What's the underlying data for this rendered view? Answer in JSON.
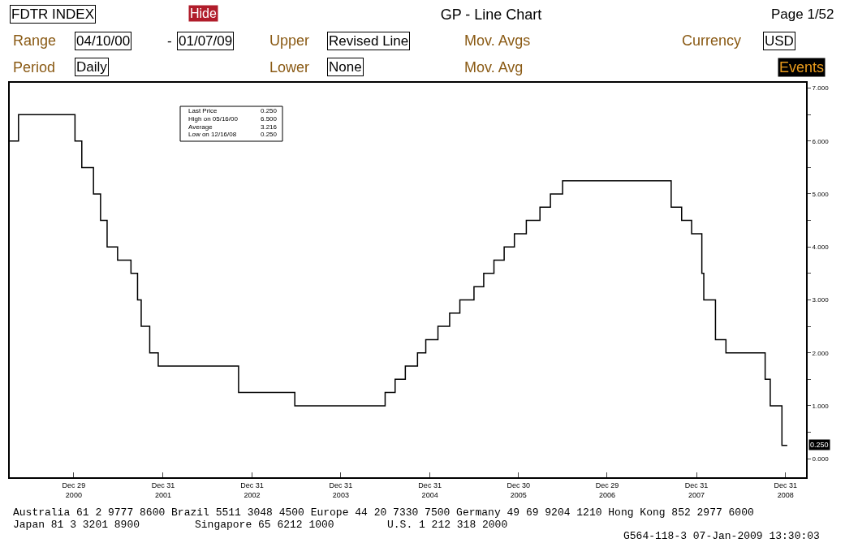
{
  "chart_data": {
    "type": "step",
    "title": "GP - Line Chart",
    "x": [
      "2000-04-10",
      "2000-05-16",
      "2001-01-03",
      "2001-01-31",
      "2001-03-20",
      "2001-04-18",
      "2001-05-15",
      "2001-06-27",
      "2001-08-21",
      "2001-09-17",
      "2001-10-02",
      "2001-11-06",
      "2001-12-11",
      "2002-11-06",
      "2003-06-25",
      "2004-06-30",
      "2004-08-10",
      "2004-09-21",
      "2004-11-10",
      "2004-12-14",
      "2005-02-02",
      "2005-03-22",
      "2005-05-03",
      "2005-06-30",
      "2005-08-09",
      "2005-09-20",
      "2005-11-01",
      "2005-12-13",
      "2006-01-31",
      "2006-03-28",
      "2006-05-10",
      "2006-06-29",
      "2007-09-18",
      "2007-10-31",
      "2007-12-11",
      "2008-01-22",
      "2008-01-30",
      "2008-03-18",
      "2008-04-30",
      "2008-10-08",
      "2008-10-29",
      "2008-12-16",
      "2009-01-07"
    ],
    "series": [
      {
        "color": "#000000",
        "values": [
          6.0,
          6.5,
          6.0,
          5.5,
          5.0,
          4.5,
          4.0,
          3.75,
          3.5,
          3.0,
          2.5,
          2.0,
          1.75,
          1.25,
          1.0,
          1.25,
          1.5,
          1.75,
          2.0,
          2.25,
          2.5,
          2.75,
          3.0,
          3.25,
          3.5,
          3.75,
          4.0,
          4.25,
          4.5,
          4.75,
          5.0,
          5.25,
          4.75,
          4.5,
          4.25,
          3.5,
          3.0,
          2.25,
          2.0,
          1.5,
          1.0,
          0.25,
          0.25
        ]
      }
    ],
    "xlim": [
      "2000-04-10",
      "2009-03-25"
    ],
    "xticks": [
      {
        "value": "2000-12-29",
        "label": "Dec 29\n2000"
      },
      {
        "value": "2001-12-31",
        "label": "Dec 31\n2001"
      },
      {
        "value": "2002-12-31",
        "label": "Dec 31\n2002"
      },
      {
        "value": "2003-12-31",
        "label": "Dec 31\n2003"
      },
      {
        "value": "2004-12-31",
        "label": "Dec 31\n2004"
      },
      {
        "value": "2005-12-30",
        "label": "Dec 30\n2005"
      },
      {
        "value": "2006-12-29",
        "label": "Dec 29\n2006"
      },
      {
        "value": "2007-12-31",
        "label": "Dec 31\n2007"
      },
      {
        "value": "2008-12-31",
        "label": "Dec 31\n2008"
      }
    ],
    "ylim": [
      -0.35,
      7.1
    ],
    "yticks": [
      {
        "value": 0,
        "label": "0.000"
      },
      {
        "value": 0.5,
        "label": null
      },
      {
        "value": 1,
        "label": "1.000"
      },
      {
        "value": 1.5,
        "label": null
      },
      {
        "value": 2,
        "label": "2.000"
      },
      {
        "value": 2.5,
        "label": null
      },
      {
        "value": 3,
        "label": "3.000"
      },
      {
        "value": 3.5,
        "label": null
      },
      {
        "value": 4,
        "label": "4.000"
      },
      {
        "value": 4.5,
        "label": null
      },
      {
        "value": 5,
        "label": "5.000"
      },
      {
        "value": 5.5,
        "label": null
      },
      {
        "value": 6,
        "label": "6.000"
      },
      {
        "value": 6.5,
        "label": null
      },
      {
        "value": 7,
        "label": "7.000"
      }
    ],
    "grid": false,
    "marker": "none",
    "line_style": "solid",
    "annotations": [
      "0.250",
      "FDTR INDEX",
      "Hide",
      "Page 1/52",
      "Range",
      "04/10/00",
      "-",
      "01/07/09",
      "Upper",
      "Revised Line",
      "Mov. Avgs",
      "Currency",
      "USD",
      "Period",
      "Daily",
      "Lower",
      "None",
      "Mov. Avg",
      "Events",
      "Last Price",
      "0.250",
      "High on 05/16/00",
      "6.500",
      "Average",
      "3.216",
      "Low on 12/16/08",
      "0.250",
      "Australia 61 2 9777 8600 Brazil 5511 3048 4500 Europe 44 20 7330 7500 Germany 49 69 9204 1210 Hong Kong 852 2977 6000",
      "Japan 81 3 3201 8900",
      "Singapore 65 6212 1000",
      "U.S. 1 212 318 2000",
      "G564-118-3 07-Jan-2009 13:30:03"
    ]
  }
}
